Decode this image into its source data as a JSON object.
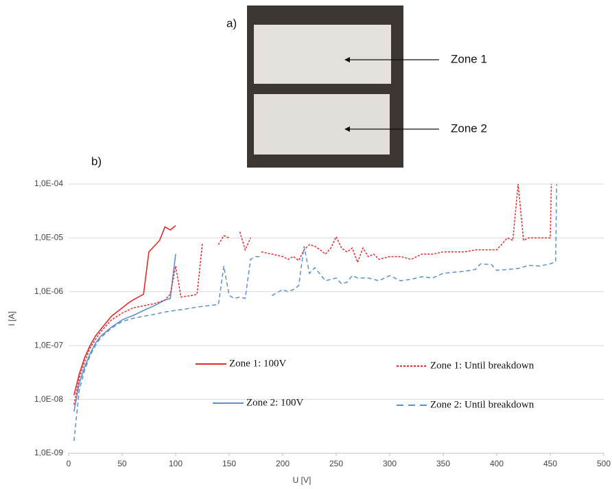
{
  "chart_data": {
    "type": "line",
    "annotations": {
      "photo_label": "a)",
      "chart_label": "b)",
      "zones": [
        "Zone 1",
        "Zone 2"
      ]
    },
    "x_label": "U [V]",
    "y_label": "I [A]",
    "log_y": true,
    "grid": true,
    "xlim": [
      0,
      500
    ],
    "xticks": [
      0,
      50,
      100,
      150,
      200,
      250,
      300,
      350,
      400,
      450,
      500
    ],
    "ylim": [
      1e-09,
      0.0001
    ],
    "yticks": [
      {
        "value": 1e-09,
        "label": "1,0E-09"
      },
      {
        "value": 1e-08,
        "label": "1,0E-08"
      },
      {
        "value": 1e-07,
        "label": "1,0E-07"
      },
      {
        "value": 1e-06,
        "label": "1,0E-06"
      },
      {
        "value": 1e-05,
        "label": "1,0E-05"
      },
      {
        "value": 0.0001,
        "label": "1,0E-04"
      }
    ],
    "series": [
      {
        "name": "Zone 1: 100V",
        "color": "#e8272a",
        "dash": false,
        "x": [
          5,
          10,
          15,
          20,
          25,
          30,
          40,
          50,
          55,
          60,
          70,
          75,
          85,
          90,
          95,
          100
        ],
        "values": [
          1.2e-08,
          3e-08,
          6e-08,
          1e-07,
          1.5e-07,
          2e-07,
          3.5e-07,
          5e-07,
          6e-07,
          7e-07,
          9e-07,
          5.5e-06,
          9e-06,
          1.6e-05,
          1.4e-05,
          1.7e-05
        ]
      },
      {
        "name": "Zone 2: 100V",
        "color": "#5b8fd0",
        "dash": false,
        "x": [
          5,
          10,
          15,
          20,
          25,
          30,
          40,
          50,
          55,
          60,
          70,
          80,
          90,
          95,
          100
        ],
        "values": [
          6e-09,
          2e-08,
          4e-08,
          7e-08,
          1.1e-07,
          1.5e-07,
          2.2e-07,
          3e-07,
          3.3e-07,
          3.6e-07,
          4.5e-07,
          5.5e-07,
          7e-07,
          7.5e-07,
          5e-06
        ]
      },
      {
        "name": "Zone 1: Until breakdown",
        "color": "#e8272a",
        "dash": true,
        "x": [
          5,
          10,
          15,
          20,
          25,
          30,
          40,
          50,
          60,
          70,
          80,
          90,
          95,
          100,
          105,
          115,
          120,
          125,
          130,
          140,
          145,
          150,
          155,
          160,
          165,
          170,
          175,
          180,
          190,
          200,
          205,
          210,
          215,
          220,
          225,
          230,
          235,
          240,
          245,
          250,
          255,
          260,
          265,
          270,
          275,
          280,
          285,
          290,
          300,
          310,
          320,
          330,
          340,
          350,
          360,
          370,
          380,
          390,
          400,
          410,
          415,
          420,
          425,
          430,
          440,
          450,
          451
        ],
        "values": [
          8e-09,
          2.5e-08,
          5e-08,
          9e-08,
          1.3e-07,
          1.8e-07,
          3e-07,
          4e-07,
          5e-07,
          5.5e-07,
          6e-07,
          7e-07,
          9e-07,
          3e-06,
          8e-07,
          8.5e-07,
          9e-07,
          8e-06,
          null,
          7.5e-06,
          1.1e-05,
          1e-05,
          null,
          1.3e-05,
          6e-06,
          1e-05,
          null,
          5.5e-06,
          5e-06,
          4.5e-06,
          4e-06,
          4.5e-06,
          3.8e-06,
          6e-06,
          7.5e-06,
          7e-06,
          6e-06,
          5e-06,
          6.5e-06,
          1.05e-05,
          6.5e-06,
          5.5e-06,
          6.5e-06,
          3.5e-06,
          6.5e-06,
          4.5e-06,
          5e-06,
          4e-06,
          4.5e-06,
          4.5e-06,
          4e-06,
          5e-06,
          5e-06,
          5.5e-06,
          5.5e-06,
          5.5e-06,
          6e-06,
          6e-06,
          6e-06,
          1e-05,
          9e-06,
          0.0001,
          9e-06,
          1e-05,
          1e-05,
          1e-05,
          0.0001
        ]
      },
      {
        "name": "Zone 2: Until breakdown",
        "color": "#5b8fd0",
        "dash": true,
        "x": [
          5,
          10,
          15,
          20,
          25,
          30,
          40,
          50,
          60,
          70,
          80,
          90,
          100,
          110,
          120,
          130,
          140,
          145,
          150,
          155,
          160,
          165,
          170,
          175,
          180,
          185,
          190,
          200,
          205,
          210,
          215,
          220,
          225,
          230,
          240,
          250,
          255,
          260,
          265,
          270,
          280,
          290,
          300,
          310,
          320,
          330,
          340,
          350,
          360,
          370,
          380,
          385,
          395,
          400,
          410,
          420,
          430,
          440,
          450,
          455,
          456
        ],
        "values": [
          1.7e-09,
          1.5e-08,
          3.5e-08,
          6.5e-08,
          1e-07,
          1.4e-07,
          2.1e-07,
          2.8e-07,
          3.2e-07,
          3.5e-07,
          3.8e-07,
          4.2e-07,
          4.5e-07,
          4.8e-07,
          5.2e-07,
          5.5e-07,
          5.8e-07,
          3e-06,
          8.5e-07,
          7.5e-07,
          8e-07,
          7.5e-07,
          4e-06,
          4.5e-06,
          4.5e-06,
          null,
          8.5e-07,
          1.1e-06,
          1e-06,
          1.1e-06,
          1.3e-06,
          7e-06,
          2.2e-06,
          2.8e-06,
          1.6e-06,
          1.8e-06,
          1.4e-06,
          1.5e-06,
          2e-06,
          1.8e-06,
          1.8e-06,
          1.6e-06,
          2e-06,
          1.6e-06,
          1.7e-06,
          1.9e-06,
          1.8e-06,
          2.2e-06,
          2.3e-06,
          2.4e-06,
          2.6e-06,
          3.3e-06,
          3.2e-06,
          2.5e-06,
          2.6e-06,
          2.7e-06,
          3.1e-06,
          3e-06,
          3.3e-06,
          3.6e-06,
          0.0001
        ]
      }
    ]
  }
}
